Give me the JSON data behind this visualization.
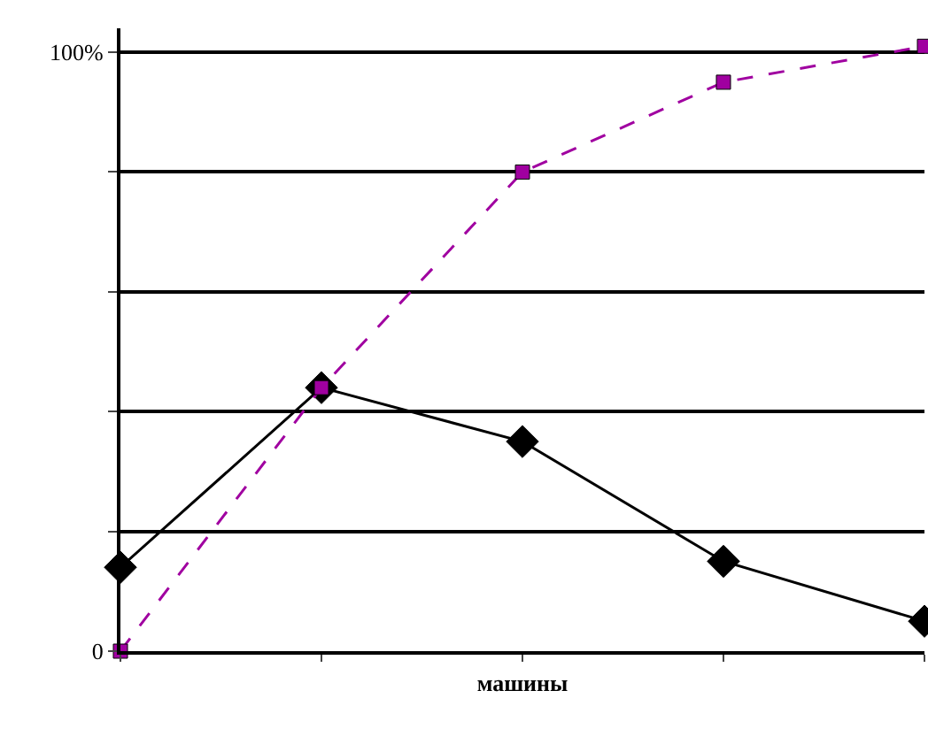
{
  "chart_data": {
    "type": "line",
    "xlabel": "машины",
    "categories": [
      null,
      null,
      null,
      null,
      null
    ],
    "series": [
      {
        "color": "#000000",
        "marker": "diamond",
        "line_style": "solid",
        "values": [
          14,
          44,
          35,
          15,
          5
        ]
      },
      {
        "color": "#a000a0",
        "marker": "square",
        "line_style": "dashed",
        "values": [
          0,
          44,
          80,
          95,
          101
        ]
      }
    ],
    "ylim": [
      0,
      104
    ],
    "yticks": [
      0,
      {
        "value": 20,
        "label": null
      },
      {
        "value": 40,
        "label": null
      },
      {
        "value": 60,
        "label": null
      },
      {
        "value": 80,
        "label": null
      },
      {
        "value": 100,
        "label": "100%"
      }
    ],
    "grid": "y",
    "legend": false
  }
}
